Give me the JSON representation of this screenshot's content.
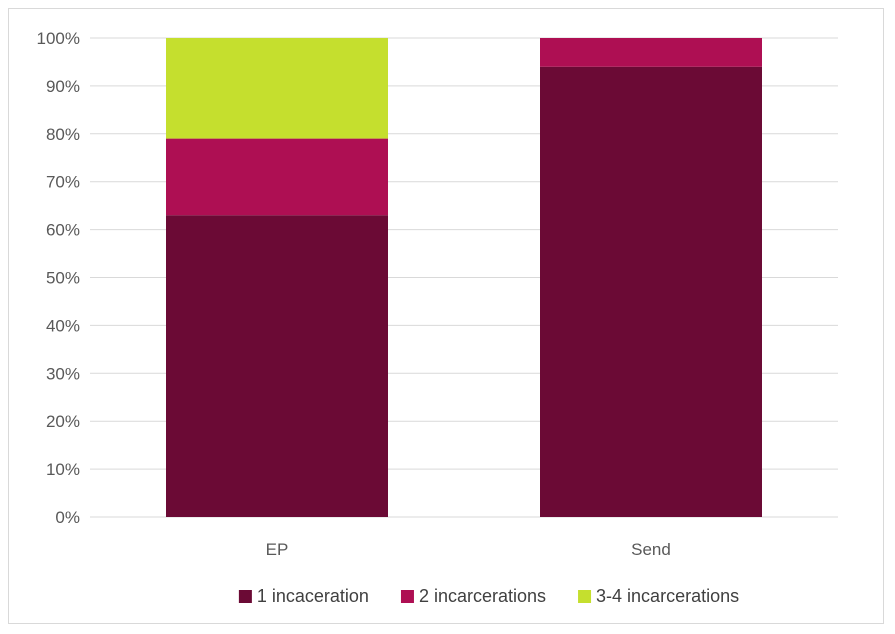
{
  "chart_data": {
    "type": "bar",
    "stacked": true,
    "categories": [
      "EP",
      "Send"
    ],
    "series": [
      {
        "name": "1 incaceration",
        "values": [
          63,
          94
        ],
        "color": "#6b0a35"
      },
      {
        "name": "2 incarcerations",
        "values": [
          16,
          6
        ],
        "color": "#ae0f53"
      },
      {
        "name": "3-4 incarcerations",
        "values": [
          21,
          0
        ],
        "color": "#c5df2e"
      }
    ],
    "ylim": [
      0,
      100
    ],
    "yticks": [
      "0%",
      "10%",
      "20%",
      "30%",
      "40%",
      "50%",
      "60%",
      "70%",
      "80%",
      "90%",
      "100%"
    ],
    "grid": true,
    "legend": "bottom",
    "title": "",
    "xlabel": "",
    "ylabel": ""
  }
}
